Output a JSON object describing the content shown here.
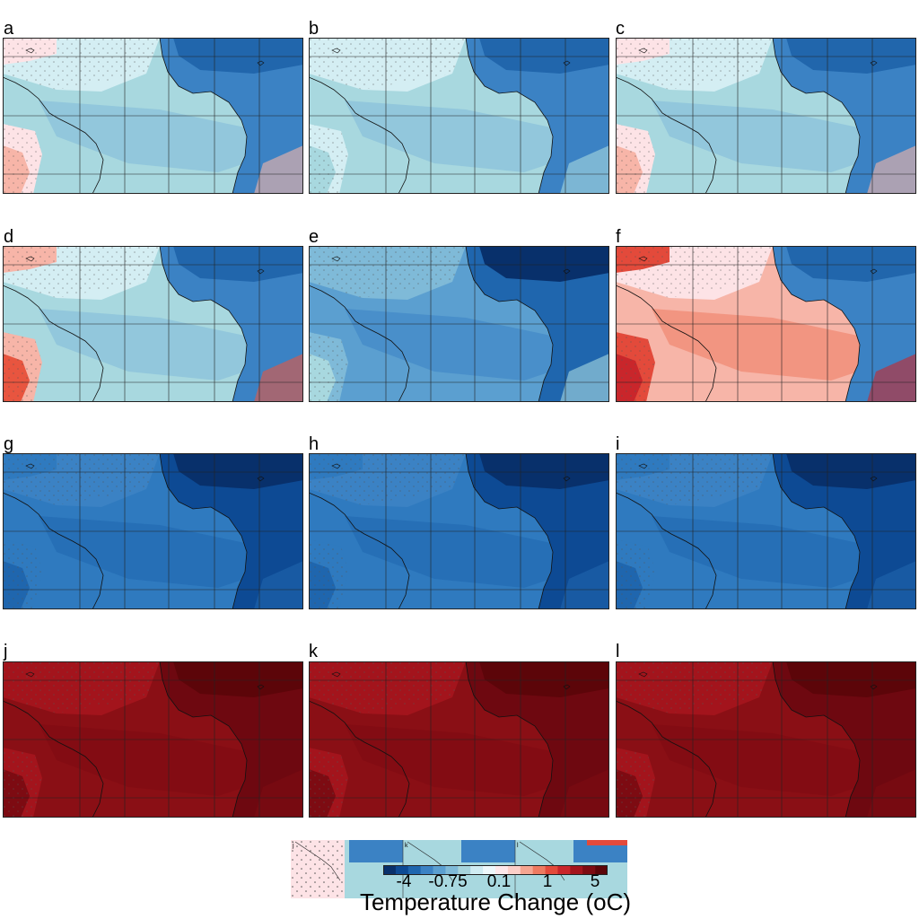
{
  "figure": {
    "panels": [
      {
        "label": "a",
        "style": "mixed"
      },
      {
        "label": "b",
        "style": "cool"
      },
      {
        "label": "c",
        "style": "mixed"
      },
      {
        "label": "d",
        "style": "warmcoast"
      },
      {
        "label": "e",
        "style": "cooler"
      },
      {
        "label": "f",
        "style": "warm"
      },
      {
        "label": "g",
        "style": "blue"
      },
      {
        "label": "h",
        "style": "blue"
      },
      {
        "label": "i",
        "style": "blue"
      },
      {
        "label": "j",
        "style": "red"
      },
      {
        "label": "k",
        "style": "red"
      },
      {
        "label": "l",
        "style": "red"
      }
    ],
    "inset_labels": [
      "j",
      "k",
      "l"
    ],
    "colorbar": {
      "title": "Temperature Change (oC)",
      "ticks": [
        "-4",
        "-0.75",
        "0.1",
        "1",
        "5"
      ],
      "colors": [
        "#08306b",
        "#0d4a94",
        "#1f66ae",
        "#3b82c4",
        "#5b9fd0",
        "#7fbad8",
        "#a6d4dc",
        "#d0ecf2",
        "#eef8fb",
        "#fde8ea",
        "#fbcfc8",
        "#f5a591",
        "#ee7a61",
        "#e34a3b",
        "#c9262b",
        "#a3141c",
        "#7d0b12",
        "#5c0509"
      ]
    },
    "palette": {
      "mixed": {
        "base": "#a8d8df",
        "light": "#d4eef3",
        "mid": "#7fbad8",
        "dark": "#3b82c4",
        "darker": "#2166ac",
        "warm": "#fde3e6",
        "warm2": "#f7b5a8"
      },
      "cool": {
        "base": "#a8d8df",
        "light": "#d4eef3",
        "mid": "#7fbad8",
        "dark": "#3b82c4",
        "darker": "#2166ac",
        "warm": "#d4eef3",
        "warm2": "#a8d8df"
      },
      "warmcoast": {
        "base": "#a8d8df",
        "light": "#d4eef3",
        "mid": "#7fbad8",
        "dark": "#3b82c4",
        "darker": "#2166ac",
        "warm": "#f7b5a8",
        "warm2": "#e8553f"
      },
      "cooler": {
        "base": "#5b9fd0",
        "light": "#7fbad8",
        "mid": "#3b82c4",
        "dark": "#1f66ae",
        "darker": "#08306b",
        "warm": "#7fbad8",
        "warm2": "#a8d8df"
      },
      "warm": {
        "base": "#f7b5a8",
        "light": "#fde3e6",
        "mid": "#ee7a61",
        "dark": "#3b82c4",
        "darker": "#2166ac",
        "warm": "#e34a3b",
        "warm2": "#c9262b"
      },
      "blue": {
        "base": "#2f7abf",
        "light": "#3b82c4",
        "mid": "#1f66ae",
        "dark": "#0d4a94",
        "darker": "#08306b",
        "warm": "#2f7abf",
        "warm2": "#1f66ae"
      },
      "red": {
        "base": "#8a0f15",
        "light": "#a3141c",
        "mid": "#7d0b12",
        "dark": "#6e0810",
        "darker": "#5c0509",
        "warm": "#a3141c",
        "warm2": "#7d0b12"
      }
    }
  }
}
